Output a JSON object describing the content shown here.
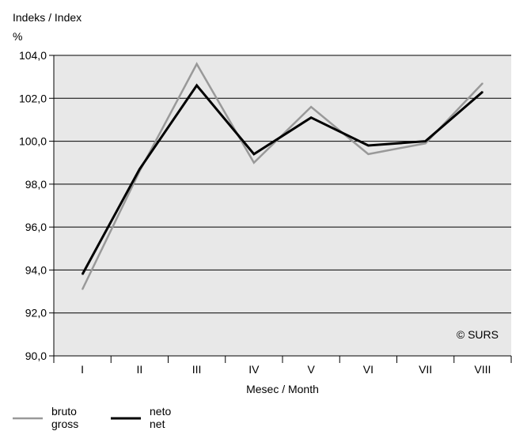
{
  "chart_data": {
    "type": "line",
    "title": "Indeks / Index",
    "unit": "%",
    "xlabel": "Mesec / Month",
    "ylabel": "",
    "categories": [
      "I",
      "II",
      "III",
      "IV",
      "V",
      "VI",
      "VII",
      "VIII"
    ],
    "ylim": [
      90.0,
      104.0
    ],
    "yticks": [
      "90,0",
      "92,0",
      "94,0",
      "96,0",
      "98,0",
      "100,0",
      "102,0",
      "104,0"
    ],
    "grid": true,
    "legend_position": "bottom-left",
    "copyright": "© SURS",
    "series": [
      {
        "name": "bruto\ngross",
        "color": "#999999",
        "values": [
          93.1,
          98.6,
          103.6,
          99.0,
          101.6,
          99.4,
          99.9,
          102.7
        ]
      },
      {
        "name": "neto\nnet",
        "color": "#000000",
        "values": [
          93.8,
          98.7,
          102.6,
          99.4,
          101.1,
          99.8,
          100.0,
          102.3
        ]
      }
    ]
  }
}
